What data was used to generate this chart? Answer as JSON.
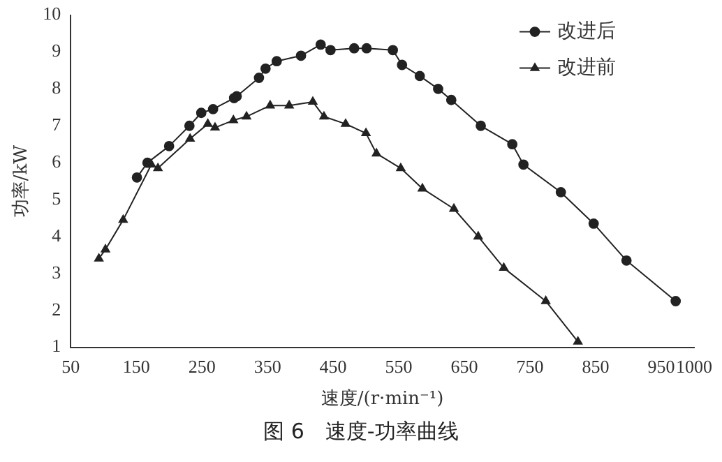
{
  "chart_data": {
    "type": "line",
    "title": "图 6　速度-功率曲线",
    "xlabel": "速度/(r·min⁻¹)",
    "ylabel": "功率/kW",
    "xlim": [
      50,
      1000
    ],
    "xticks": [
      50,
      150,
      250,
      350,
      450,
      550,
      650,
      750,
      850,
      950,
      1000
    ],
    "ylim": [
      1,
      10
    ],
    "yticks": [
      1,
      2,
      3,
      4,
      5,
      6,
      7,
      8,
      9,
      10
    ],
    "grid": false,
    "legend": "top right",
    "series": [
      {
        "name": "改进后",
        "color": "#222222",
        "marker": "circle",
        "x": [
          151,
          167,
          200,
          231,
          249,
          267,
          299,
          303,
          337,
          347,
          364,
          401,
          431,
          446,
          482,
          501,
          541,
          555,
          582,
          610,
          630,
          675,
          723,
          740,
          797,
          847,
          897,
          972
        ],
        "values": [
          5.6,
          6.0,
          6.45,
          7.0,
          7.35,
          7.45,
          7.75,
          7.8,
          8.3,
          8.55,
          8.75,
          8.9,
          9.2,
          9.05,
          9.1,
          9.1,
          9.05,
          8.65,
          8.35,
          8.0,
          7.7,
          7.0,
          6.5,
          5.95,
          5.2,
          4.35,
          3.35,
          2.25
        ]
      },
      {
        "name": "改进前",
        "color": "#222222",
        "marker": "triangle",
        "x": [
          93,
          103,
          130,
          173,
          183,
          232,
          259,
          270,
          298,
          318,
          354,
          383,
          419,
          436,
          469,
          500,
          516,
          553,
          586,
          634,
          671,
          710,
          774,
          823
        ],
        "values": [
          3.4,
          3.65,
          4.45,
          5.95,
          5.85,
          6.65,
          7.05,
          6.95,
          7.15,
          7.25,
          7.55,
          7.55,
          7.65,
          7.25,
          7.05,
          6.8,
          6.25,
          5.85,
          5.3,
          4.75,
          4.0,
          3.15,
          2.25,
          1.15
        ]
      }
    ]
  }
}
